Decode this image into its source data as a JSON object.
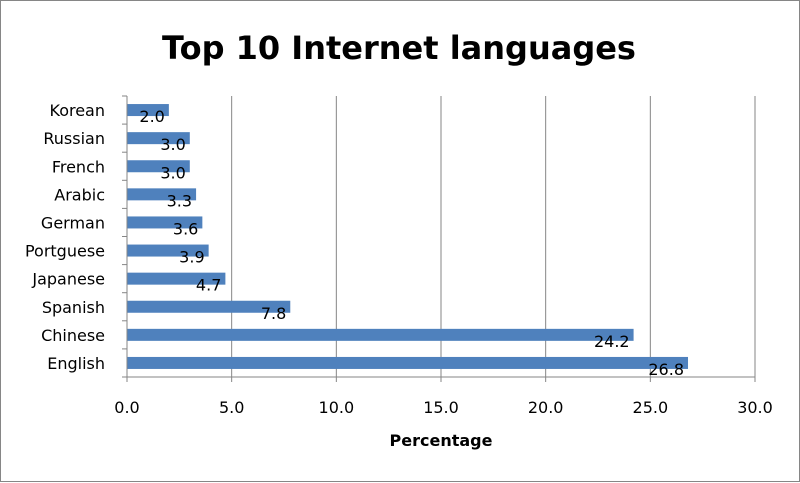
{
  "chart_data": {
    "type": "bar",
    "orientation": "horizontal",
    "title": "Top 10 Internet languages",
    "xlabel": "Percentage",
    "ylabel": "",
    "categories": [
      "English",
      "Chinese",
      "Spanish",
      "Japanese",
      "Portguese",
      "German",
      "Arabic",
      "French",
      "Russian",
      "Korean"
    ],
    "values": [
      26.8,
      24.2,
      7.8,
      4.7,
      3.9,
      3.6,
      3.3,
      3.0,
      3.0,
      2.0
    ],
    "value_labels": [
      "26.8",
      "24.2",
      "7.8",
      "4.7",
      "3.9",
      "3.6",
      "3.3",
      "3.0",
      "3.0",
      "2.0"
    ],
    "xlim": [
      0,
      30
    ],
    "xticks": [
      "0.0",
      "5.0",
      "10.0",
      "15.0",
      "20.0",
      "25.0",
      "30.0"
    ],
    "grid": "vertical",
    "legend": "none",
    "bar_color": "#4F81BD",
    "gridline_color": "#868686"
  }
}
